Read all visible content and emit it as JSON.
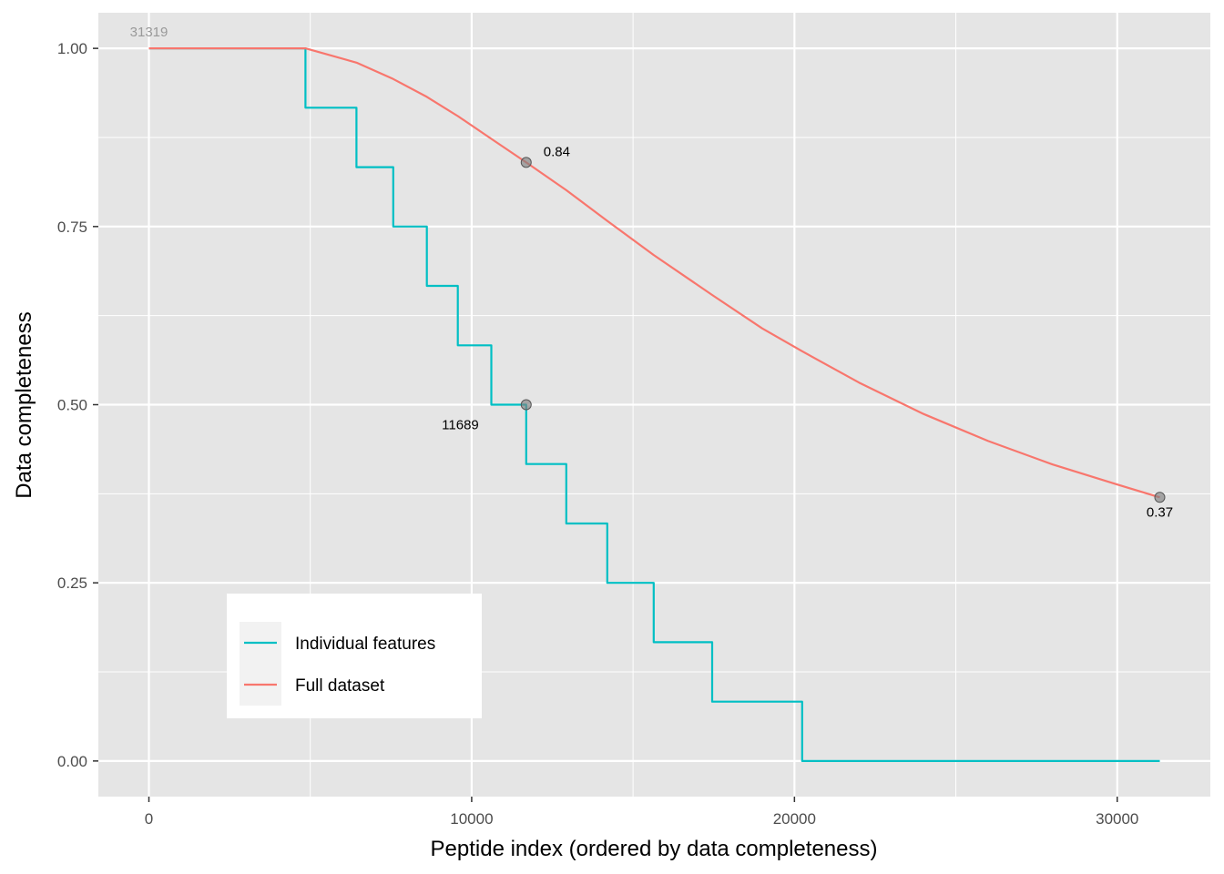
{
  "chart_data": {
    "type": "line",
    "xlabel": "Peptide index (ordered by data completeness)",
    "ylabel": "Data completeness",
    "xlim": [
      -1566,
      32885
    ],
    "ylim": [
      -0.05,
      1.05
    ],
    "x_ticks": [
      0,
      10000,
      20000,
      30000
    ],
    "x_tick_labels": [
      "0",
      "10000",
      "20000",
      "30000"
    ],
    "y_ticks": [
      0,
      0.25,
      0.5,
      0.75,
      1.0
    ],
    "y_tick_labels": [
      "0.00",
      "0.25",
      "0.50",
      "0.75",
      "1.00"
    ],
    "background": "#e5e5e5",
    "grid": true,
    "legend_position": "bottom-left",
    "series": [
      {
        "name": "Individual features",
        "color": "#00bfc4",
        "style": "step",
        "points": [
          [
            0,
            1.0
          ],
          [
            4850,
            1.0
          ],
          [
            4850,
            0.9167
          ],
          [
            6430,
            0.9167
          ],
          [
            6430,
            0.8333
          ],
          [
            7570,
            0.8333
          ],
          [
            7570,
            0.75
          ],
          [
            8610,
            0.75
          ],
          [
            8610,
            0.6667
          ],
          [
            9570,
            0.6667
          ],
          [
            9570,
            0.5833
          ],
          [
            10610,
            0.5833
          ],
          [
            10610,
            0.5
          ],
          [
            11689,
            0.5
          ],
          [
            11689,
            0.4167
          ],
          [
            12930,
            0.4167
          ],
          [
            12930,
            0.3333
          ],
          [
            14200,
            0.3333
          ],
          [
            14200,
            0.25
          ],
          [
            15640,
            0.25
          ],
          [
            15640,
            0.1667
          ],
          [
            17450,
            0.1667
          ],
          [
            17450,
            0.0833
          ],
          [
            20240,
            0.0833
          ],
          [
            20240,
            0.0
          ],
          [
            31319,
            0.0
          ]
        ]
      },
      {
        "name": "Full dataset",
        "color": "#f8766d",
        "style": "line",
        "points": [
          [
            0,
            1.0
          ],
          [
            4850,
            1.0
          ],
          [
            6430,
            0.98
          ],
          [
            7570,
            0.957
          ],
          [
            8610,
            0.932
          ],
          [
            9570,
            0.905
          ],
          [
            10610,
            0.873
          ],
          [
            11689,
            0.84
          ],
          [
            12930,
            0.801
          ],
          [
            14200,
            0.758
          ],
          [
            15640,
            0.71
          ],
          [
            17450,
            0.654
          ],
          [
            19000,
            0.607
          ],
          [
            20240,
            0.575
          ],
          [
            22000,
            0.531
          ],
          [
            24000,
            0.487
          ],
          [
            26000,
            0.449
          ],
          [
            28000,
            0.416
          ],
          [
            30000,
            0.388
          ],
          [
            31319,
            0.37
          ]
        ]
      }
    ],
    "highlight_points": [
      {
        "x": 11689,
        "y": 0.84,
        "label": "0.84",
        "label_pos": "right"
      },
      {
        "x": 11689,
        "y": 0.5,
        "label": "11689",
        "label_pos": "bottom-left"
      },
      {
        "x": 31319,
        "y": 0.37,
        "label": "0.37",
        "label_pos": "below"
      }
    ],
    "annotations": [
      {
        "x": 0,
        "y": 1.0,
        "text": "31319",
        "color": "#999999"
      }
    ]
  }
}
